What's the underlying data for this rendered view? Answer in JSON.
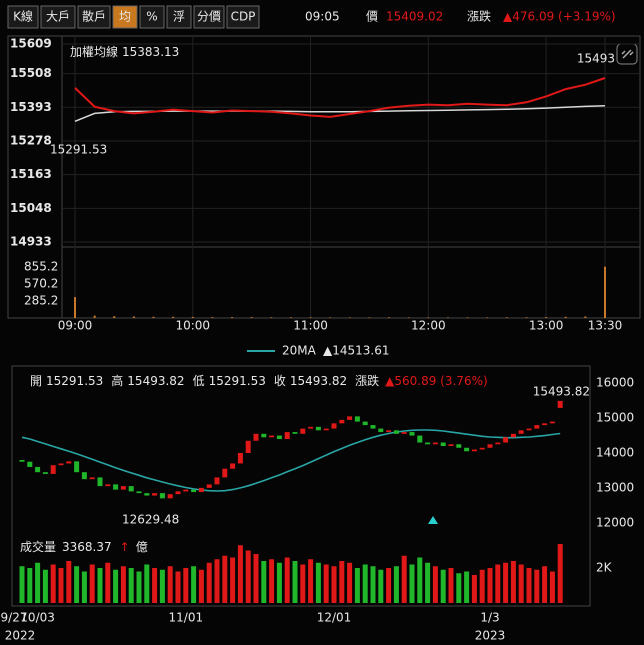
{
  "toolbar": {
    "buttons": [
      "K線",
      "大戶",
      "散戶",
      "均",
      "%",
      "浮",
      "分價",
      "CDP"
    ],
    "active": 3,
    "time": "09:05",
    "price_label": "價",
    "price": 15409.02,
    "change_label": "漲跌",
    "change": "▲476.09 (+3.19%)"
  },
  "chart_data": [
    {
      "type": "line",
      "grid": true,
      "x": [
        "09:00",
        "09:10",
        "09:20",
        "09:30",
        "09:40",
        "09:50",
        "10:00",
        "10:10",
        "10:20",
        "10:30",
        "10:40",
        "10:50",
        "11:00",
        "11:10",
        "11:20",
        "11:30",
        "11:40",
        "11:50",
        "12:00",
        "12:10",
        "12:20",
        "12:30",
        "12:40",
        "12:50",
        "13:00",
        "13:10",
        "13:20",
        "13:30"
      ],
      "xlim": [
        "09:00",
        "13:30"
      ],
      "xticks": [
        "09:00",
        "10:00",
        "11:00",
        "12:00",
        "13:00",
        "13:30"
      ],
      "ylim": [
        14933,
        15609
      ],
      "yticks": [
        15609,
        15508,
        15393,
        15278,
        15163,
        15048,
        14933
      ],
      "series": [
        {
          "color": "#e01818",
          "values": [
            15459,
            15395,
            15380,
            15372,
            15378,
            15385,
            15380,
            15375,
            15382,
            15380,
            15378,
            15372,
            15365,
            15360,
            15370,
            15380,
            15392,
            15398,
            15402,
            15400,
            15405,
            15402,
            15400,
            15410,
            15430,
            15455,
            15470,
            15493
          ]
        },
        {
          "name": "加權均線",
          "legend_value": 15383.13,
          "color": "#d8d8d8",
          "values": [
            15345,
            15372,
            15378,
            15379,
            15379,
            15380,
            15380,
            15380,
            15380,
            15380,
            15380,
            15379,
            15378,
            15378,
            15378,
            15379,
            15380,
            15381,
            15382,
            15383,
            15384,
            15385,
            15386,
            15388,
            15390,
            15393,
            15396,
            15398
          ]
        }
      ],
      "annotations": [
        {
          "text": "15493",
          "color": "#e0309a"
        },
        {
          "text": "15291.53",
          "color": "#3cc83c"
        }
      ],
      "volume": {
        "color": "#c8782a",
        "ylim": [
          0,
          1140
        ],
        "yticks": [
          855.2,
          570.2,
          285.2
        ],
        "values": [
          350,
          40,
          30,
          25,
          20,
          20,
          18,
          15,
          15,
          15,
          12,
          12,
          12,
          10,
          10,
          10,
          12,
          10,
          10,
          10,
          10,
          10,
          12,
          12,
          15,
          20,
          25,
          860
        ]
      }
    },
    {
      "type": "candlestick",
      "header": [
        {
          "label": "開",
          "value": 15291.53
        },
        {
          "label": "高",
          "value": 15493.82
        },
        {
          "label": "低",
          "value": 15291.53
        },
        {
          "label": "收",
          "value": 15493.82
        }
      ],
      "change_label": "漲跌",
      "change": "▲560.89 (3.76%)",
      "categories": [
        "9/27",
        null,
        "10/03",
        null,
        null,
        null,
        null,
        null,
        null,
        null,
        null,
        null,
        null,
        null,
        null,
        null,
        null,
        null,
        null,
        null,
        null,
        "11/01",
        null,
        null,
        null,
        null,
        null,
        null,
        null,
        null,
        null,
        null,
        null,
        null,
        null,
        null,
        null,
        null,
        null,
        null,
        "12/01",
        null,
        null,
        null,
        null,
        null,
        null,
        null,
        null,
        null,
        null,
        null,
        null,
        null,
        null,
        null,
        null,
        null,
        null,
        null,
        "1/3",
        null,
        null,
        null,
        null,
        null,
        null,
        null,
        null,
        null
      ],
      "year_labels": [
        "2022",
        null,
        null,
        null,
        null,
        null,
        null,
        null,
        null,
        null,
        null,
        null,
        null,
        null,
        null,
        null,
        null,
        null,
        null,
        null,
        null,
        null,
        null,
        null,
        null,
        null,
        null,
        null,
        null,
        null,
        null,
        null,
        null,
        null,
        null,
        null,
        null,
        null,
        null,
        null,
        null,
        null,
        null,
        null,
        null,
        null,
        null,
        null,
        null,
        null,
        null,
        null,
        null,
        null,
        null,
        null,
        null,
        null,
        null,
        null,
        "2023",
        null,
        null,
        null,
        null,
        null,
        null,
        null,
        null,
        null
      ],
      "open": [
        13800,
        13750,
        13600,
        13450,
        13400,
        13650,
        13700,
        13760,
        13450,
        13250,
        13300,
        13050,
        13100,
        12950,
        13050,
        12900,
        12850,
        12780,
        12850,
        12700,
        12820,
        12900,
        12950,
        12880,
        13000,
        13100,
        13300,
        13550,
        13700,
        14000,
        14350,
        14550,
        14450,
        14500,
        14400,
        14600,
        14550,
        14700,
        14750,
        14650,
        14700,
        14850,
        14950,
        15050,
        14900,
        14800,
        14700,
        14600,
        14650,
        14550,
        14600,
        14500,
        14300,
        14250,
        14300,
        14200,
        14250,
        14150,
        14050,
        14100,
        14150,
        14250,
        14300,
        14450,
        14550,
        14650,
        14700,
        14800,
        14850,
        15291.53
      ],
      "close": [
        13750,
        13600,
        13450,
        13400,
        13650,
        13700,
        13760,
        13450,
        13250,
        13300,
        13050,
        13100,
        12950,
        13050,
        12900,
        12850,
        12780,
        12850,
        12700,
        12820,
        12900,
        12950,
        12880,
        13000,
        13100,
        13300,
        13550,
        13700,
        14000,
        14350,
        14550,
        14450,
        14500,
        14400,
        14600,
        14550,
        14700,
        14750,
        14650,
        14700,
        14850,
        14950,
        15050,
        14900,
        14800,
        14700,
        14600,
        14650,
        14550,
        14600,
        14500,
        14300,
        14250,
        14300,
        14200,
        14250,
        14150,
        14050,
        14100,
        14150,
        14250,
        14300,
        14450,
        14550,
        14650,
        14700,
        14800,
        14850,
        14900,
        15493.82
      ],
      "up_color": "#e01818",
      "down_color": "#20b82a",
      "ma": {
        "name": "20MA",
        "value_label": "▲14513.61",
        "color": "#2aa5a5",
        "values": [
          14450,
          14400,
          14330,
          14260,
          14190,
          14120,
          14050,
          13980,
          13900,
          13820,
          13740,
          13660,
          13580,
          13500,
          13430,
          13360,
          13290,
          13230,
          13170,
          13110,
          13060,
          13010,
          12970,
          12940,
          12920,
          12910,
          12920,
          12950,
          13000,
          13060,
          13130,
          13210,
          13290,
          13370,
          13460,
          13550,
          13640,
          13740,
          13840,
          13940,
          14040,
          14130,
          14220,
          14300,
          14380,
          14450,
          14510,
          14560,
          14600,
          14630,
          14650,
          14660,
          14660,
          14650,
          14630,
          14600,
          14570,
          14540,
          14510,
          14480,
          14460,
          14450,
          14440,
          14440,
          14450,
          14460,
          14480,
          14500,
          14530,
          14560
        ]
      },
      "ylim": [
        11850,
        16150
      ],
      "yticks": [
        16000,
        15000,
        14000,
        13000,
        12000
      ],
      "annotations": [
        {
          "text": "15493.82",
          "color": "#e01818"
        },
        {
          "text": "12629.48",
          "color": "#3cc83c"
        }
      ],
      "volume": {
        "label": "成交量",
        "value": 3368.37,
        "unit_mark": "↑",
        "unit": "億",
        "ylim": [
          0,
          3600
        ],
        "yticks": [
          {
            "value": 2000,
            "label": "2K"
          }
        ],
        "values": [
          2100,
          2000,
          2300,
          1900,
          2200,
          2000,
          2400,
          2100,
          1800,
          2200,
          2000,
          2300,
          1900,
          2100,
          2000,
          1800,
          2200,
          2000,
          1900,
          2100,
          1800,
          2000,
          2100,
          1900,
          2300,
          2500,
          2700,
          2600,
          3300,
          3000,
          2800,
          2400,
          2500,
          2300,
          2600,
          2400,
          2200,
          2500,
          2300,
          2200,
          2100,
          2400,
          2300,
          2000,
          2200,
          2100,
          1900,
          2000,
          2100,
          2700,
          2200,
          2600,
          2300,
          2100,
          1900,
          2000,
          1700,
          1800,
          1600,
          1900,
          2000,
          2200,
          2300,
          2400,
          2200,
          2000,
          1900,
          2100,
          1800,
          3368.37
        ]
      }
    }
  ]
}
